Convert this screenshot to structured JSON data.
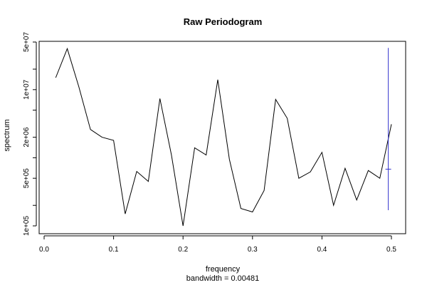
{
  "chart_data": {
    "type": "line",
    "title": "Raw Periodogram",
    "xlabel": "frequency",
    "sublabel": "bandwidth = 0.00481",
    "ylabel": "spectrum",
    "y_scale": "log",
    "xlim": [
      0.0,
      0.51
    ],
    "ylim": [
      80000,
      50000000
    ],
    "x_ticks": [
      {
        "value": 0.0,
        "label": "0.0"
      },
      {
        "value": 0.1,
        "label": "0.1"
      },
      {
        "value": 0.2,
        "label": "0.2"
      },
      {
        "value": 0.3,
        "label": "0.3"
      },
      {
        "value": 0.4,
        "label": "0.4"
      },
      {
        "value": 0.5,
        "label": "0.5"
      }
    ],
    "y_ticks": [
      {
        "value": 100000,
        "label": "1e+05"
      },
      {
        "value": 200000,
        "label": ""
      },
      {
        "value": 500000,
        "label": "5e+05"
      },
      {
        "value": 1000000,
        "label": ""
      },
      {
        "value": 2000000,
        "label": "2e+06"
      },
      {
        "value": 5000000,
        "label": ""
      },
      {
        "value": 10000000,
        "label": "1e+07"
      },
      {
        "value": 20000000,
        "label": ""
      },
      {
        "value": 50000000,
        "label": "5e+07"
      }
    ],
    "series": [
      {
        "color": "#000000",
        "x": [
          0.0167,
          0.0333,
          0.05,
          0.0667,
          0.0833,
          0.1,
          0.1167,
          0.1333,
          0.15,
          0.1667,
          0.1833,
          0.2,
          0.2167,
          0.2333,
          0.25,
          0.2667,
          0.2833,
          0.3,
          0.3167,
          0.3333,
          0.35,
          0.3667,
          0.3833,
          0.4,
          0.4167,
          0.4333,
          0.45,
          0.4667,
          0.4833,
          0.5
        ],
        "y": [
          15000000,
          40000000,
          11000000,
          2600000,
          2000000,
          1800000,
          150000,
          630000,
          450000,
          7400000,
          1100000,
          100000,
          1400000,
          1100000,
          14000000,
          950000,
          180000,
          160000,
          330000,
          7200000,
          3800000,
          500000,
          620000,
          1200000,
          200000,
          700000,
          240000,
          650000,
          500000,
          3100000
        ]
      }
    ],
    "ci_bar": {
      "x": 0.4955,
      "lower": 170000,
      "center": 680000,
      "upper": 41000000,
      "color": "#3333cc"
    }
  }
}
